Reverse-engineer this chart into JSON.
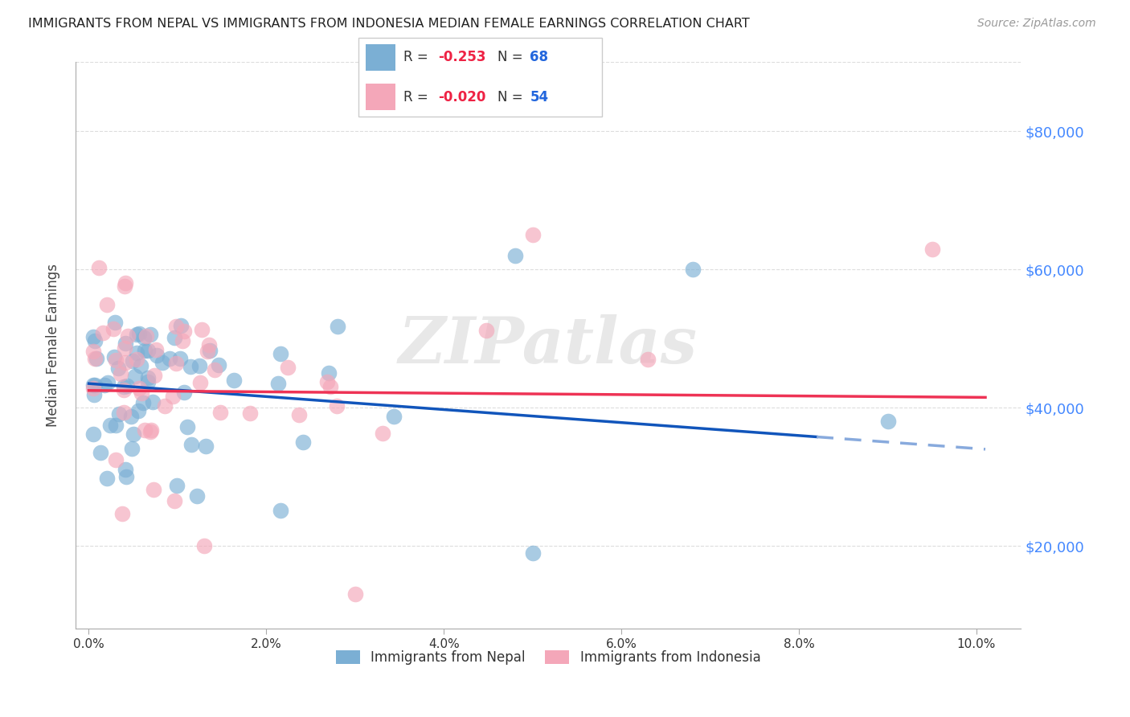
{
  "title": "IMMIGRANTS FROM NEPAL VS IMMIGRANTS FROM INDONESIA MEDIAN FEMALE EARNINGS CORRELATION CHART",
  "source": "Source: ZipAtlas.com",
  "ylabel": "Median Female Earnings",
  "xlabel_ticks": [
    "0.0%",
    "2.0%",
    "4.0%",
    "6.0%",
    "8.0%",
    "10.0%"
  ],
  "xlabel_vals": [
    0.0,
    2.0,
    4.0,
    6.0,
    8.0,
    10.0
  ],
  "ytick_labels": [
    "$20,000",
    "$40,000",
    "$60,000",
    "$80,000"
  ],
  "ytick_vals": [
    20000,
    40000,
    60000,
    80000
  ],
  "xlim": [
    -0.15,
    10.5
  ],
  "ylim": [
    8000,
    90000
  ],
  "nepal_R": -0.253,
  "nepal_N": 68,
  "indonesia_R": -0.02,
  "indonesia_N": 54,
  "nepal_color": "#7BAFD4",
  "indonesia_color": "#F4A7B9",
  "nepal_line_color": "#1155BB",
  "indonesia_line_color": "#EE3355",
  "nepal_dash_color": "#88AADD",
  "nepal_label": "Immigrants from Nepal",
  "indonesia_label": "Immigrants from Indonesia",
  "watermark": "ZIPatlas",
  "title_color": "#222222",
  "source_color": "#999999",
  "ylabel_color": "#444444",
  "ytick_color": "#4488FF",
  "grid_color": "#DDDDDD",
  "nepal_line_x0": 0.0,
  "nepal_line_y0": 43500,
  "nepal_line_x1": 10.1,
  "nepal_line_y1": 34000,
  "nepal_solid_end": 8.2,
  "indonesia_line_x0": 0.0,
  "indonesia_line_y0": 42500,
  "indonesia_line_x1": 10.1,
  "indonesia_line_y1": 41500
}
